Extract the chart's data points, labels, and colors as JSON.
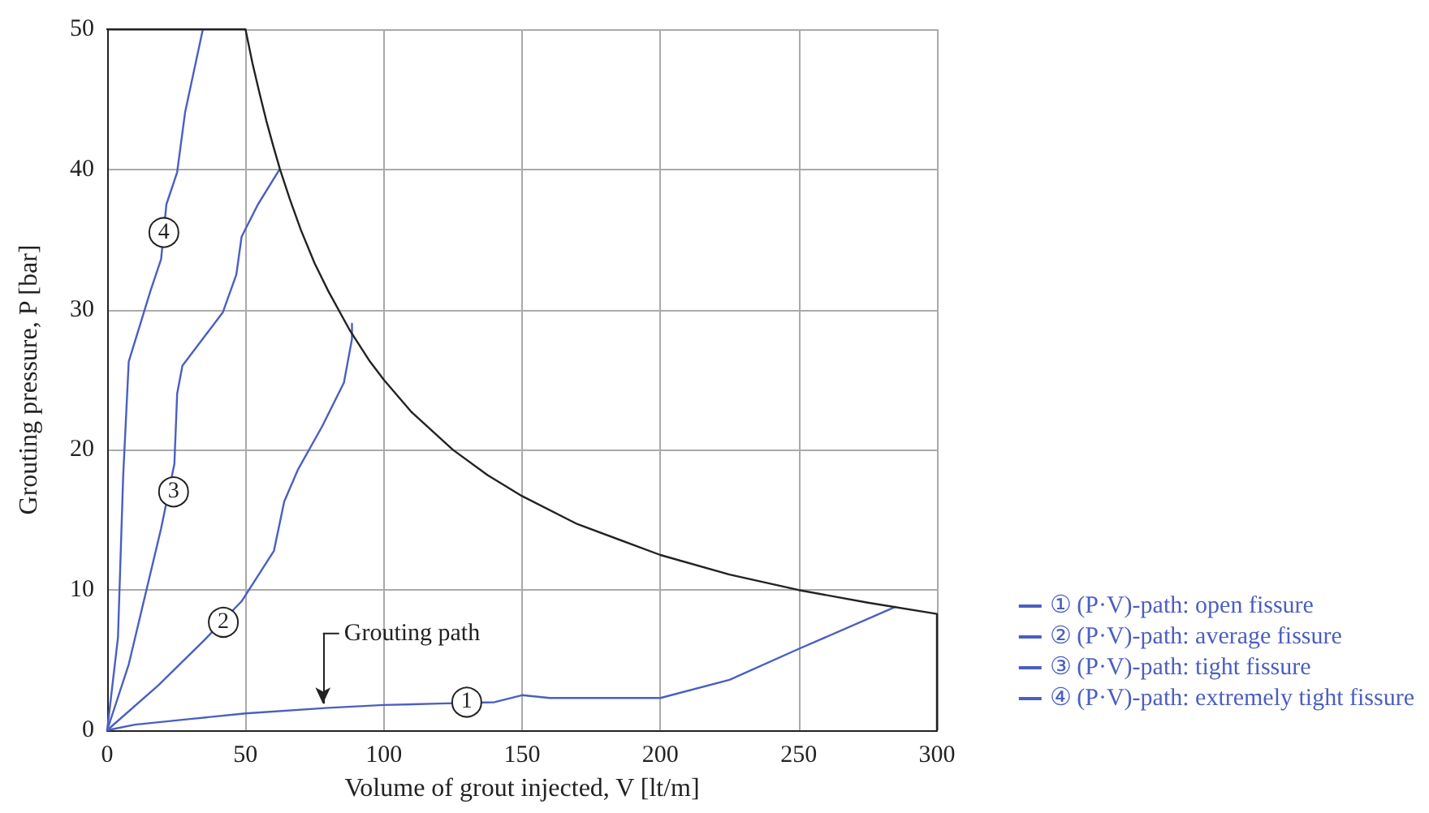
{
  "chart_data": {
    "type": "line",
    "xlabel": "Volume of grout injected, V [lt/m]",
    "ylabel": "Grouting pressure, P [bar]",
    "xlim": [
      0,
      300
    ],
    "xticks": [
      0,
      50,
      100,
      150,
      200,
      250,
      300
    ],
    "ylim": [
      0,
      50
    ],
    "yticks": [
      0,
      10,
      20,
      30,
      40,
      50
    ],
    "grid": true,
    "legend": "right",
    "marker": "none",
    "line_style": "solid",
    "series": [
      {
        "name": "① (P·V)-path: open fissure",
        "color": "#4a5fc1",
        "x": [
          0,
          10,
          30,
          50,
          80,
          100,
          120,
          140,
          150,
          160,
          200,
          225,
          250,
          285
        ],
        "values": [
          0,
          0.4,
          0.8,
          1.2,
          1.6,
          1.8,
          1.9,
          2.0,
          2.5,
          2.3,
          2.3,
          3.6,
          5.8,
          8.8
        ]
      },
      {
        "name": "② (P·V)-path: average fissure",
        "color": "#4a5fc1",
        "x": [
          0,
          18.5,
          35,
          48.6,
          60.3,
          64,
          69,
          77.8,
          85.6,
          88.5,
          88.5
        ],
        "values": [
          0,
          3.2,
          6.4,
          9.2,
          12.8,
          16.3,
          18.6,
          21.7,
          24.8,
          27.9,
          29
        ]
      },
      {
        "name": "③ (P·V)-path: tight fissure",
        "color": "#4a5fc1",
        "x": [
          0,
          7.8,
          19.5,
          24.3,
          25.3,
          27.2,
          41.8,
          46.7,
          48.6,
          54.5,
          62.3
        ],
        "values": [
          0,
          4.7,
          14.4,
          19,
          24,
          26,
          29.8,
          32.5,
          35.2,
          37.5,
          40
        ]
      },
      {
        "name": "④ (P·V)-path: extremely tight fissure",
        "color": "#4a5fc1",
        "x": [
          0,
          3.9,
          5.8,
          7.8,
          15.6,
          19.5,
          21.4,
          25.3,
          28.2,
          34.6
        ],
        "values": [
          0,
          6.6,
          18.2,
          26.3,
          31.3,
          33.6,
          37.5,
          39.8,
          44.1,
          50
        ]
      },
      {
        "color": "#222222",
        "x": [
          0,
          50,
          52.5,
          55,
          57.5,
          60,
          62.5,
          66,
          70,
          75,
          80,
          87.5,
          95,
          100,
          110,
          125,
          137.5,
          150,
          170,
          200,
          225,
          250,
          275,
          300,
          300
        ],
        "values": [
          50,
          50,
          47.6,
          45.5,
          43.5,
          41.7,
          40,
          37.9,
          35.7,
          33.3,
          31.3,
          28.6,
          26.3,
          25,
          22.7,
          20,
          18.2,
          16.7,
          14.7,
          12.5,
          11.1,
          10,
          9.1,
          8.3,
          0
        ]
      }
    ],
    "annotations": [
      {
        "text": "1",
        "x": 130,
        "y": 2.0
      },
      {
        "text": "2",
        "x": 42,
        "y": 7.7
      },
      {
        "text": "3",
        "x": 24,
        "y": 17
      },
      {
        "text": "4",
        "x": 20.5,
        "y": 35.5
      },
      {
        "text": "Grouting path",
        "x": 78,
        "y": 1.7
      }
    ]
  }
}
